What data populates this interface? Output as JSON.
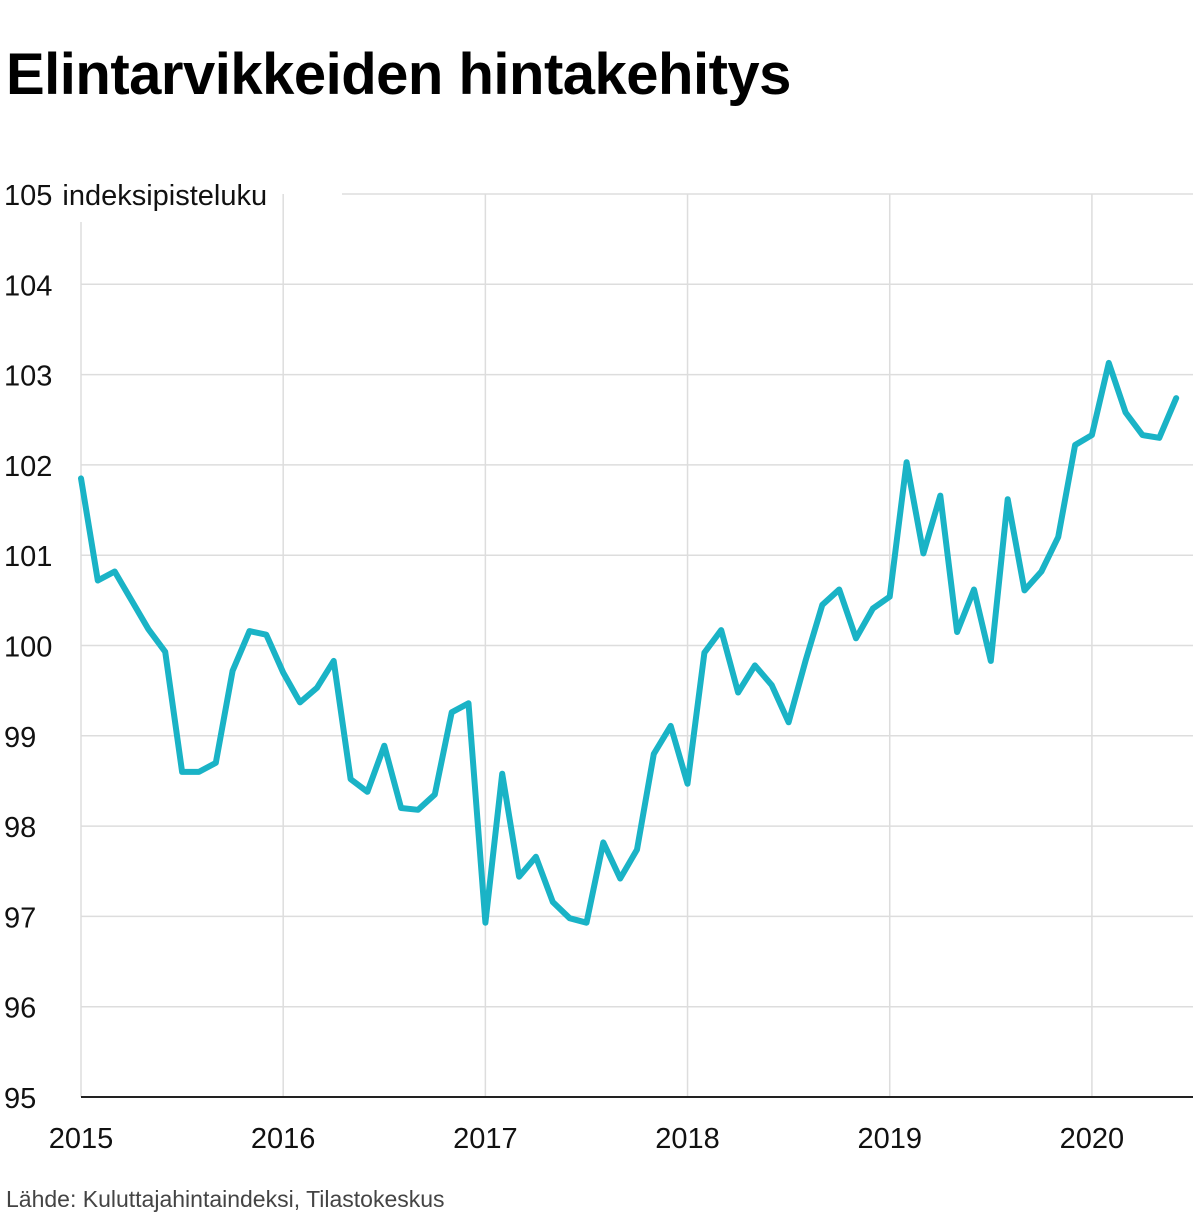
{
  "title": "Elintarvikkeiden hintakehitys",
  "source": "Lähde: Kuluttajahintaindeksi, Tilastokeskus",
  "chart_data": {
    "type": "line",
    "title": "Elintarvikkeiden hintakehitys",
    "ylabel": "indeksipisteluku",
    "xlabel": "",
    "ylim": [
      95,
      105
    ],
    "xlim": [
      2015.0,
      2020.5
    ],
    "y_ticks": [
      "95",
      "96",
      "97",
      "98",
      "99",
      "100",
      "101",
      "102",
      "103",
      "104",
      "105"
    ],
    "x_ticks": [
      "2015",
      "2016",
      "2017",
      "2018",
      "2019",
      "2020"
    ],
    "grid": true,
    "line_color": "#1ab3c6",
    "series": [
      {
        "name": "",
        "x": [
          "2015-01",
          "2015-02",
          "2015-03",
          "2015-04",
          "2015-05",
          "2015-06",
          "2015-07",
          "2015-08",
          "2015-09",
          "2015-10",
          "2015-11",
          "2015-12",
          "2016-01",
          "2016-02",
          "2016-03",
          "2016-04",
          "2016-05",
          "2016-06",
          "2016-07",
          "2016-08",
          "2016-09",
          "2016-10",
          "2016-11",
          "2016-12",
          "2017-01",
          "2017-02",
          "2017-03",
          "2017-04",
          "2017-05",
          "2017-06",
          "2017-07",
          "2017-08",
          "2017-09",
          "2017-10",
          "2017-11",
          "2017-12",
          "2018-01",
          "2018-02",
          "2018-03",
          "2018-04",
          "2018-05",
          "2018-06",
          "2018-07",
          "2018-08",
          "2018-09",
          "2018-10",
          "2018-11",
          "2018-12",
          "2019-01",
          "2019-02",
          "2019-03",
          "2019-04",
          "2019-05",
          "2019-06",
          "2019-07",
          "2019-08",
          "2019-09",
          "2019-10",
          "2019-11",
          "2019-12",
          "2020-01",
          "2020-02",
          "2020-03",
          "2020-04",
          "2020-05",
          "2020-06",
          "2020-07"
        ],
        "values": [
          101.85,
          100.72,
          100.82,
          100.5,
          100.18,
          99.93,
          98.6,
          98.6,
          98.7,
          99.72,
          100.16,
          100.12,
          99.7,
          99.37,
          99.53,
          99.83,
          98.52,
          98.38,
          98.89,
          98.2,
          98.18,
          98.35,
          99.26,
          99.36,
          96.93,
          98.58,
          97.44,
          97.66,
          97.16,
          96.98,
          96.93,
          97.82,
          97.42,
          97.74,
          98.8,
          99.11,
          98.47,
          99.92,
          100.17,
          99.48,
          99.78,
          99.56,
          99.15,
          99.83,
          100.45,
          100.62,
          100.08,
          100.41,
          100.54,
          102.03,
          101.02,
          101.66,
          100.15,
          100.62,
          99.83,
          101.62,
          100.61,
          100.82,
          101.2,
          102.22,
          102.33,
          103.13,
          102.58,
          102.33,
          102.3,
          102.74,
          null
        ]
      }
    ]
  }
}
